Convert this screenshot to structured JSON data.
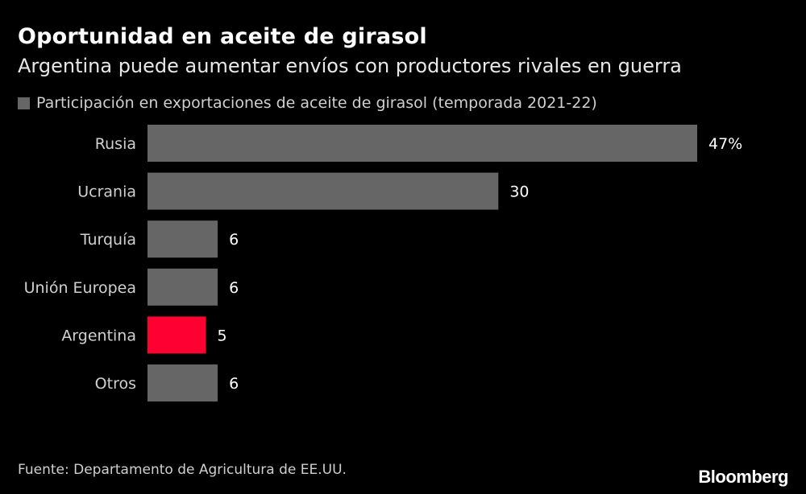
{
  "header": {
    "title": "Oportunidad en aceite de girasol",
    "subtitle": "Argentina puede aumentar envíos con productores rivales en guerra"
  },
  "legend": {
    "label": "Participación en exportaciones de aceite de girasol (temporada 2021-22)",
    "color": "#666666"
  },
  "footer": {
    "source": "Fuente: Departamento de Agricultura de EE.UU.",
    "brand": "Bloomberg"
  },
  "colors": {
    "bar": "#666666",
    "highlight": "#ff0033",
    "background": "#000000",
    "text": "#ffffff",
    "label": "#d0d0d0"
  },
  "chart_data": {
    "type": "bar",
    "orientation": "horizontal",
    "categories": [
      "Rusia",
      "Ucrania",
      "Turquía",
      "Unión Europea",
      "Argentina",
      "Otros"
    ],
    "series": [
      {
        "name": "Participación en exportaciones de aceite de girasol (temporada 2021-22)",
        "values": [
          47,
          30,
          6,
          6,
          5,
          6
        ]
      }
    ],
    "value_labels": [
      "47%",
      "30",
      "6",
      "6",
      "5",
      "6"
    ],
    "highlight_category": "Argentina",
    "xlim": [
      0,
      47
    ],
    "grid": false,
    "legend_position": "top-left"
  }
}
